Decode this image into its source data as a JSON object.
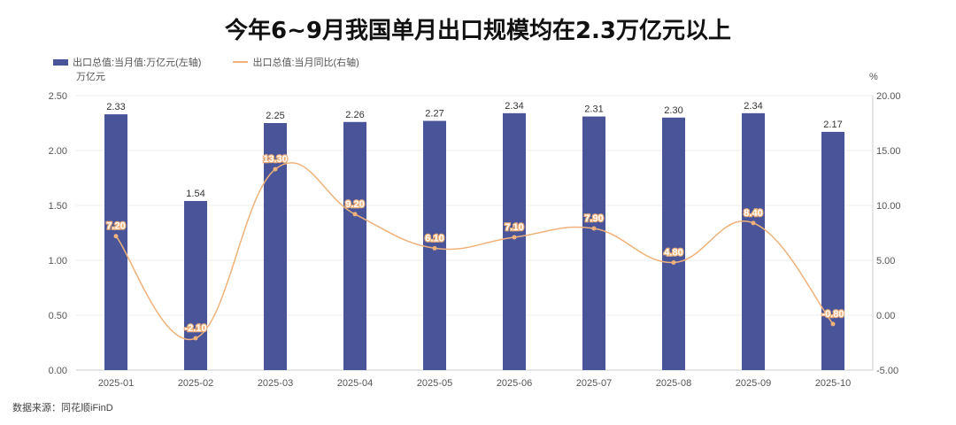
{
  "chart_data": {
    "type": "bar+line",
    "title": "今年6~9月我国单月出口规模均在2.3万亿元以上",
    "categories": [
      "2025-01",
      "2025-02",
      "2025-03",
      "2025-04",
      "2025-05",
      "2025-06",
      "2025-07",
      "2025-08",
      "2025-09",
      "2025-10"
    ],
    "series": [
      {
        "name": "出口总值:当月值:万亿元(左轴)",
        "type": "bar",
        "axis": "left",
        "color": "#4a5499",
        "values": [
          2.33,
          1.54,
          2.25,
          2.26,
          2.27,
          2.34,
          2.31,
          2.3,
          2.34,
          2.17
        ]
      },
      {
        "name": "出口总值:当月同比(右轴)",
        "type": "line",
        "axis": "right",
        "color": "#f0b27a",
        "values": [
          7.2,
          -2.1,
          13.3,
          9.2,
          6.1,
          7.1,
          7.9,
          4.8,
          8.4,
          -0.8
        ]
      }
    ],
    "left_axis": {
      "unit": "万亿元",
      "range": [
        0,
        2.5
      ],
      "ticks": [
        "0.00",
        "0.50",
        "1.00",
        "1.50",
        "2.00",
        "2.50"
      ]
    },
    "right_axis": {
      "unit": "%",
      "range": [
        -5,
        20
      ],
      "ticks": [
        "-5.00",
        "0.00",
        "5.00",
        "10.00",
        "15.00",
        "20.00"
      ]
    },
    "grid": true,
    "legend_position": "top-left",
    "source": "数据来源：同花顺iFinD"
  }
}
